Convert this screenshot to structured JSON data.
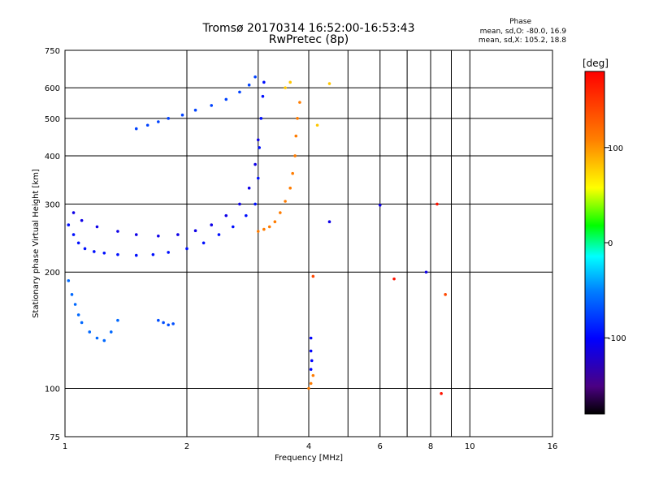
{
  "header": {
    "title": "Tromsø 20170314 16:52:00-16:53:43",
    "subtitle": "RwPretec (8p)"
  },
  "phase_info": {
    "heading": "Phase",
    "line1": "mean, sd,O: -80.0, 16.9",
    "line2": "mean, sd,X: 105.2, 18.8"
  },
  "chart_data": {
    "type": "scatter",
    "title": "Tromsø 20170314 16:52:00-16:53:43",
    "subtitle": "RwPretec (8p)",
    "xlabel": "Frequency [MHz]",
    "ylabel": "Stationary phase Virtual Height [km]",
    "xscale": "log",
    "yscale": "log",
    "xlim": [
      1,
      16
    ],
    "ylim": [
      75,
      750
    ],
    "xticks": [
      1,
      2,
      4,
      6,
      8,
      10,
      16
    ],
    "xtick_labels": [
      "1",
      "2",
      "4",
      "6",
      "8",
      "10",
      "16"
    ],
    "yticks": [
      75,
      100,
      200,
      300,
      400,
      500,
      600,
      750
    ],
    "ytick_labels": [
      "75",
      "100",
      "200",
      "300",
      "400",
      "500",
      "600",
      "750"
    ],
    "grid": true,
    "colorbar": {
      "label": "[deg]",
      "ticks": [
        100,
        0,
        -100
      ],
      "tick_labels": [
        "100",
        "0",
        "-100"
      ],
      "range": [
        -180,
        180
      ]
    },
    "traces": [
      {
        "name": "",
        "phase": -95,
        "points": [
          [
            1.02,
            265
          ],
          [
            1.05,
            250
          ],
          [
            1.08,
            238
          ],
          [
            1.12,
            230
          ],
          [
            1.18,
            226
          ],
          [
            1.25,
            224
          ],
          [
            1.35,
            222
          ],
          [
            1.5,
            221
          ],
          [
            1.65,
            222
          ],
          [
            1.8,
            225
          ],
          [
            2.0,
            230
          ],
          [
            2.2,
            238
          ],
          [
            2.4,
            250
          ],
          [
            2.6,
            262
          ],
          [
            2.8,
            280
          ],
          [
            2.95,
            300
          ],
          [
            3.0,
            350
          ],
          [
            3.02,
            420
          ],
          [
            3.05,
            500
          ],
          [
            3.08,
            570
          ],
          [
            3.1,
            620
          ]
        ]
      },
      {
        "name": "",
        "phase": -110,
        "points": [
          [
            1.05,
            285
          ],
          [
            1.1,
            272
          ],
          [
            1.2,
            262
          ],
          [
            1.35,
            255
          ],
          [
            1.5,
            250
          ],
          [
            1.7,
            248
          ],
          [
            1.9,
            250
          ],
          [
            2.1,
            256
          ],
          [
            2.3,
            265
          ],
          [
            2.5,
            280
          ],
          [
            2.7,
            300
          ],
          [
            2.85,
            330
          ],
          [
            2.95,
            380
          ],
          [
            3.0,
            440
          ]
        ]
      },
      {
        "name": "",
        "phase": -75,
        "points": [
          [
            1.5,
            470
          ],
          [
            1.6,
            480
          ],
          [
            1.7,
            490
          ],
          [
            1.8,
            500
          ],
          [
            1.95,
            510
          ],
          [
            2.1,
            525
          ],
          [
            2.3,
            540
          ],
          [
            2.5,
            560
          ],
          [
            2.7,
            585
          ],
          [
            2.85,
            610
          ],
          [
            2.95,
            640
          ]
        ]
      },
      {
        "name": "",
        "phase": 110,
        "points": [
          [
            3.0,
            255
          ],
          [
            3.1,
            258
          ],
          [
            3.2,
            262
          ],
          [
            3.3,
            270
          ],
          [
            3.4,
            285
          ],
          [
            3.5,
            305
          ],
          [
            3.6,
            330
          ],
          [
            3.65,
            360
          ],
          [
            3.7,
            400
          ],
          [
            3.72,
            450
          ],
          [
            3.75,
            500
          ],
          [
            3.8,
            550
          ]
        ]
      },
      {
        "name": "",
        "phase": -60,
        "points": [
          [
            1.02,
            190
          ],
          [
            1.04,
            175
          ],
          [
            1.06,
            165
          ],
          [
            1.08,
            155
          ],
          [
            1.1,
            148
          ],
          [
            1.15,
            140
          ],
          [
            1.2,
            135
          ],
          [
            1.25,
            133
          ],
          [
            1.3,
            140
          ],
          [
            1.35,
            150
          ]
        ]
      },
      {
        "name": "",
        "phase": -70,
        "points": [
          [
            1.7,
            150
          ],
          [
            1.75,
            148
          ],
          [
            1.8,
            146
          ],
          [
            1.85,
            147
          ]
        ]
      },
      {
        "name": "",
        "phase": 80,
        "points": [
          [
            3.5,
            600
          ],
          [
            3.6,
            620
          ],
          [
            4.5,
            615
          ],
          [
            4.2,
            480
          ]
        ]
      },
      {
        "name": "",
        "phase": -100,
        "points": [
          [
            4.05,
            135
          ],
          [
            4.05,
            125
          ],
          [
            4.07,
            118
          ],
          [
            4.05,
            112
          ]
        ]
      },
      {
        "name": "",
        "phase": 110,
        "points": [
          [
            4.0,
            100
          ],
          [
            4.05,
            103
          ],
          [
            4.1,
            108
          ]
        ]
      },
      {
        "name": "",
        "phase": 170,
        "points": [
          [
            6.5,
            192
          ],
          [
            8.3,
            300
          ],
          [
            8.5,
            97
          ]
        ]
      },
      {
        "name": "",
        "phase": -110,
        "points": [
          [
            7.8,
            200
          ],
          [
            6.0,
            298
          ],
          [
            4.5,
            270
          ]
        ]
      },
      {
        "name": "",
        "phase": 140,
        "points": [
          [
            8.7,
            175
          ],
          [
            4.1,
            195
          ]
        ]
      }
    ]
  }
}
